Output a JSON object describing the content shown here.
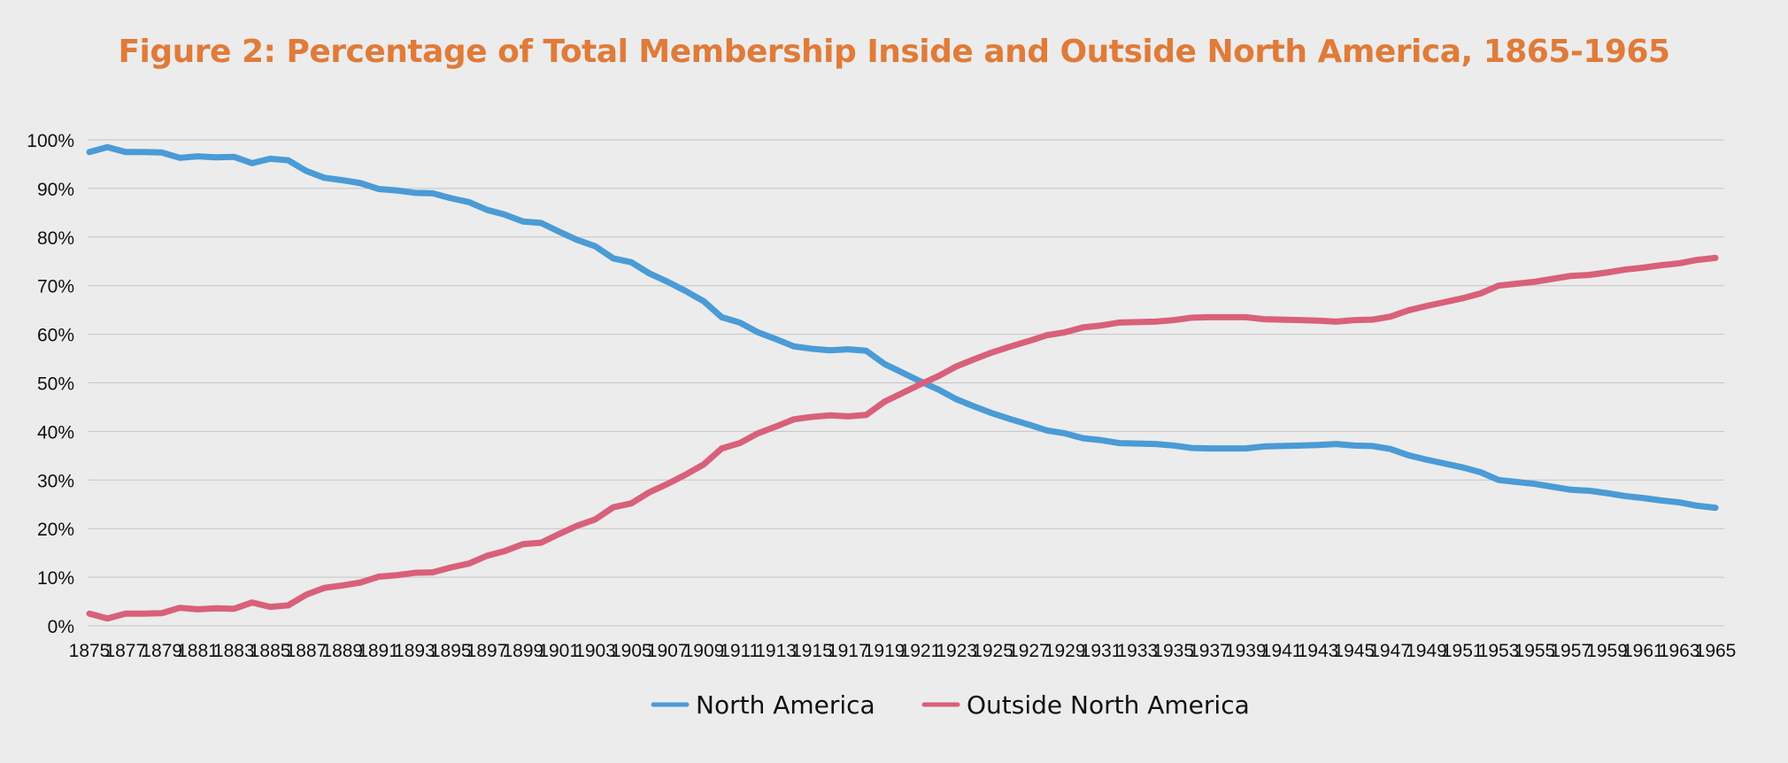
{
  "title": "Figure 2: Percentage of Total Membership Inside and Outside North America, 1865-1965",
  "colors": {
    "title": "#e07b39",
    "north_america": "#4a9bd6",
    "outside_north_america": "#d9607a",
    "grid": "#c4c4c4",
    "background": "#ececec"
  },
  "chart_data": {
    "type": "line",
    "title": "Figure 2: Percentage of Total Membership Inside and Outside North America, 1865-1965",
    "xlabel": "",
    "ylabel": "",
    "x": [
      1875,
      1876,
      1877,
      1878,
      1879,
      1880,
      1881,
      1882,
      1883,
      1884,
      1885,
      1886,
      1887,
      1888,
      1889,
      1890,
      1891,
      1892,
      1893,
      1894,
      1895,
      1896,
      1897,
      1898,
      1899,
      1900,
      1901,
      1902,
      1903,
      1904,
      1905,
      1906,
      1907,
      1908,
      1909,
      1910,
      1911,
      1912,
      1913,
      1914,
      1915,
      1916,
      1917,
      1918,
      1919,
      1920,
      1921,
      1922,
      1923,
      1924,
      1925,
      1926,
      1927,
      1928,
      1929,
      1930,
      1931,
      1932,
      1933,
      1934,
      1935,
      1936,
      1937,
      1938,
      1939,
      1940,
      1941,
      1942,
      1943,
      1944,
      1945,
      1946,
      1947,
      1948,
      1949,
      1950,
      1951,
      1952,
      1953,
      1954,
      1955,
      1956,
      1957,
      1958,
      1959,
      1960,
      1961,
      1962,
      1963,
      1964,
      1965
    ],
    "x_tick_labels": [
      "1875",
      "1877",
      "1879",
      "1881",
      "1883",
      "1885",
      "1887",
      "1889",
      "1891",
      "1893",
      "1895",
      "1897",
      "1899",
      "1901",
      "1903",
      "1905",
      "1907",
      "1909",
      "1911",
      "1913",
      "1915",
      "1917",
      "1919",
      "1921",
      "1923",
      "1925",
      "1927",
      "1929",
      "1931",
      "1933",
      "1935",
      "1937",
      "1939",
      "1941",
      "1943",
      "1945",
      "1947",
      "1949",
      "1951",
      "1953",
      "1955",
      "1957",
      "1959",
      "1961",
      "1963",
      "1965"
    ],
    "y_tick_labels": [
      "0%",
      "10%",
      "20%",
      "30%",
      "40%",
      "50%",
      "60%",
      "70%",
      "80%",
      "90%",
      "100%"
    ],
    "ylim": [
      0,
      100
    ],
    "grid": true,
    "legend": "bottom",
    "series": [
      {
        "name": "North America",
        "values": [
          97.5,
          98.5,
          97.5,
          97.5,
          97.4,
          96.3,
          96.6,
          96.4,
          96.5,
          95.2,
          96.1,
          95.8,
          93.6,
          92.2,
          91.7,
          91.1,
          89.9,
          89.6,
          89.1,
          89.0,
          88.0,
          87.2,
          85.6,
          84.6,
          83.2,
          82.9,
          81.1,
          79.4,
          78.1,
          75.6,
          74.8,
          72.5,
          70.8,
          68.9,
          66.8,
          63.5,
          62.4,
          60.4,
          59.0,
          57.5,
          57.0,
          56.7,
          56.9,
          56.6,
          53.9,
          52.1,
          50.3,
          48.6,
          46.6,
          45.1,
          43.7,
          42.5,
          41.4,
          40.2,
          39.6,
          38.6,
          38.2,
          37.6,
          37.5,
          37.4,
          37.1,
          36.6,
          36.5,
          36.5,
          36.5,
          36.9,
          37.0,
          37.1,
          37.2,
          37.4,
          37.1,
          37.0,
          36.4,
          35.1,
          34.2,
          33.4,
          32.6,
          31.6,
          30.0,
          29.6,
          29.2,
          28.6,
          28.0,
          27.8,
          27.3,
          26.7,
          26.3,
          25.8,
          25.4,
          24.7,
          24.3
        ]
      },
      {
        "name": "Outside North America",
        "values": [
          2.5,
          1.5,
          2.5,
          2.5,
          2.6,
          3.7,
          3.4,
          3.6,
          3.5,
          4.8,
          3.9,
          4.2,
          6.4,
          7.8,
          8.3,
          8.9,
          10.1,
          10.4,
          10.9,
          11.0,
          12.0,
          12.8,
          14.4,
          15.4,
          16.8,
          17.1,
          18.9,
          20.6,
          21.9,
          24.4,
          25.2,
          27.5,
          29.2,
          31.1,
          33.2,
          36.5,
          37.6,
          39.6,
          41.0,
          42.5,
          43.0,
          43.3,
          43.1,
          43.4,
          46.1,
          47.9,
          49.7,
          51.4,
          53.4,
          54.9,
          56.3,
          57.5,
          58.6,
          59.8,
          60.4,
          61.4,
          61.8,
          62.4,
          62.5,
          62.6,
          62.9,
          63.4,
          63.5,
          63.5,
          63.5,
          63.1,
          63.0,
          62.9,
          62.8,
          62.6,
          62.9,
          63.0,
          63.6,
          64.9,
          65.8,
          66.6,
          67.4,
          68.4,
          70.0,
          70.4,
          70.8,
          71.4,
          72.0,
          72.2,
          72.7,
          73.3,
          73.7,
          74.2,
          74.6,
          75.3,
          75.7
        ]
      }
    ]
  }
}
